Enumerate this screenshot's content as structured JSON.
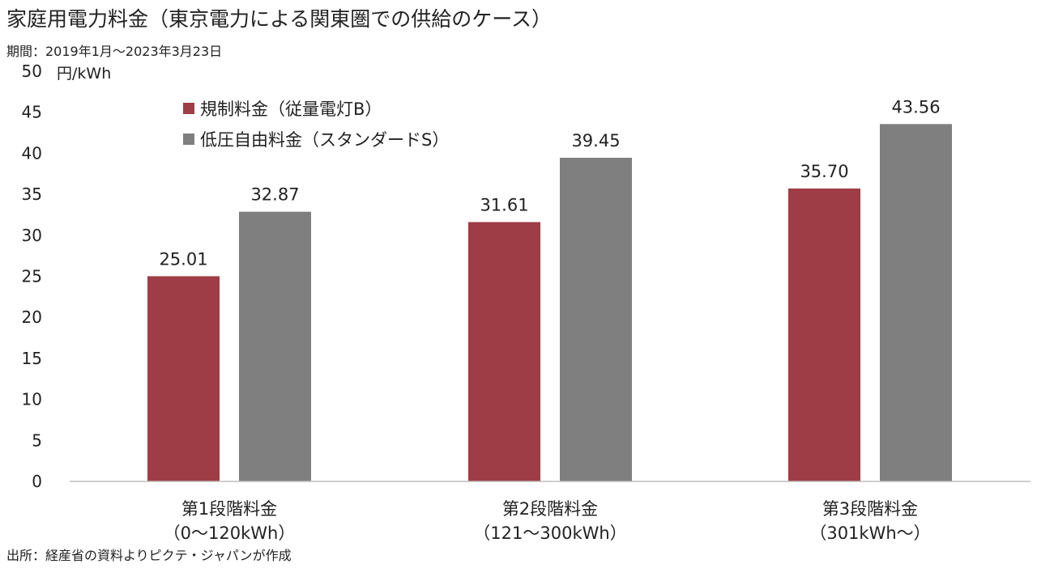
{
  "header": {
    "title": "家庭用電力料金（東京電力による関東圏での供給のケース）",
    "period": "期間：2019年1月～2023年3月23日"
  },
  "footer": {
    "source": "出所：経産省の資料よりピクテ・ジャパンが作成"
  },
  "chart_data": {
    "type": "bar",
    "ylabel": "円/kWh",
    "ylim": [
      0,
      50
    ],
    "yticks": [
      0,
      5,
      10,
      15,
      20,
      25,
      30,
      35,
      40,
      45,
      50
    ],
    "grid": false,
    "legend_position": "top-left",
    "categories": [
      [
        "第1段階料金",
        "（0～120kWh）"
      ],
      [
        "第2段階料金",
        "（121～300kWh）"
      ],
      [
        "第3段階料金",
        "（301kWh～）"
      ]
    ],
    "series": [
      {
        "name": "規制料金（従量電灯B）",
        "color": "#9e3d45",
        "values": [
          25.01,
          31.61,
          35.7
        ],
        "labels": [
          "25.01",
          "31.61",
          "35.70"
        ]
      },
      {
        "name": "低圧自由料金（スタンダードS）",
        "color": "#7f7f7f",
        "values": [
          32.87,
          39.45,
          43.56
        ],
        "labels": [
          "32.87",
          "39.45",
          "43.56"
        ]
      }
    ]
  }
}
